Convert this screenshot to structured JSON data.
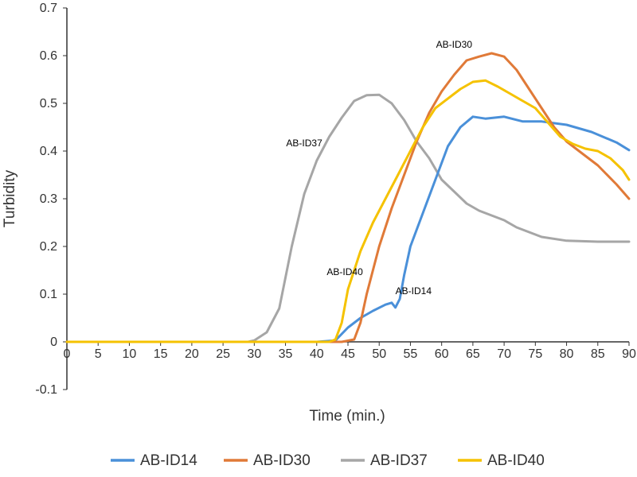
{
  "chart_data": {
    "type": "line",
    "title": "",
    "xlabel": "Time (min.)",
    "ylabel": "Turbidity",
    "xlim": [
      0,
      90
    ],
    "ylim": [
      -0.1,
      0.7
    ],
    "x_ticks": [
      "0",
      "5",
      "10",
      "15",
      "20",
      "25",
      "30",
      "35",
      "40",
      "45",
      "50",
      "55",
      "60",
      "65",
      "70",
      "75",
      "80",
      "85",
      "90"
    ],
    "y_ticks": [
      "0.7",
      "0.6",
      "0.5",
      "0.4",
      "0.3",
      "0.2",
      "0.1",
      "0",
      "-0.1"
    ],
    "grid": false,
    "legend_position": "bottom",
    "series": [
      {
        "name": "AB-ID14",
        "color": "#4A90D9",
        "points": [
          [
            0,
            0
          ],
          [
            40,
            0
          ],
          [
            43,
            0.003
          ],
          [
            45,
            0.03
          ],
          [
            47,
            0.05
          ],
          [
            49,
            0.065
          ],
          [
            51,
            0.078
          ],
          [
            52,
            0.082
          ],
          [
            52.6,
            0.072
          ],
          [
            53.3,
            0.09
          ],
          [
            54,
            0.14
          ],
          [
            55,
            0.2
          ],
          [
            57,
            0.27
          ],
          [
            59,
            0.34
          ],
          [
            61,
            0.41
          ],
          [
            63,
            0.45
          ],
          [
            65,
            0.472
          ],
          [
            67,
            0.468
          ],
          [
            70,
            0.472
          ],
          [
            73,
            0.462
          ],
          [
            76,
            0.462
          ],
          [
            80,
            0.455
          ],
          [
            84,
            0.44
          ],
          [
            88,
            0.418
          ],
          [
            90,
            0.402
          ]
        ]
      },
      {
        "name": "AB-ID30",
        "color": "#E07A38",
        "points": [
          [
            0,
            0
          ],
          [
            44,
            0
          ],
          [
            46,
            0.005
          ],
          [
            47,
            0.04
          ],
          [
            48,
            0.1
          ],
          [
            50,
            0.2
          ],
          [
            52,
            0.28
          ],
          [
            54,
            0.35
          ],
          [
            56,
            0.42
          ],
          [
            58,
            0.48
          ],
          [
            60,
            0.525
          ],
          [
            62,
            0.56
          ],
          [
            64,
            0.59
          ],
          [
            66,
            0.598
          ],
          [
            68,
            0.605
          ],
          [
            70,
            0.598
          ],
          [
            72,
            0.57
          ],
          [
            74,
            0.53
          ],
          [
            76,
            0.49
          ],
          [
            78,
            0.45
          ],
          [
            80,
            0.42
          ],
          [
            82,
            0.4
          ],
          [
            85,
            0.37
          ],
          [
            88,
            0.33
          ],
          [
            90,
            0.3
          ]
        ]
      },
      {
        "name": "AB-ID37",
        "color": "#A6A6A6",
        "points": [
          [
            0,
            0
          ],
          [
            29,
            0
          ],
          [
            30,
            0.003
          ],
          [
            32,
            0.02
          ],
          [
            34,
            0.07
          ],
          [
            36,
            0.2
          ],
          [
            38,
            0.31
          ],
          [
            40,
            0.38
          ],
          [
            42,
            0.43
          ],
          [
            44,
            0.47
          ],
          [
            46,
            0.505
          ],
          [
            48,
            0.517
          ],
          [
            50,
            0.518
          ],
          [
            52,
            0.5
          ],
          [
            54,
            0.465
          ],
          [
            56,
            0.42
          ],
          [
            58,
            0.385
          ],
          [
            60,
            0.34
          ],
          [
            62,
            0.315
          ],
          [
            64,
            0.29
          ],
          [
            66,
            0.275
          ],
          [
            68,
            0.265
          ],
          [
            70,
            0.255
          ],
          [
            72,
            0.24
          ],
          [
            74,
            0.23
          ],
          [
            76,
            0.22
          ],
          [
            80,
            0.212
          ],
          [
            85,
            0.21
          ],
          [
            90,
            0.21
          ]
        ]
      },
      {
        "name": "AB-ID40",
        "color": "#F5C200",
        "points": [
          [
            0,
            0
          ],
          [
            42,
            0
          ],
          [
            43,
            0.005
          ],
          [
            44,
            0.04
          ],
          [
            45,
            0.11
          ],
          [
            47,
            0.19
          ],
          [
            49,
            0.25
          ],
          [
            51,
            0.3
          ],
          [
            53,
            0.35
          ],
          [
            55,
            0.4
          ],
          [
            57,
            0.45
          ],
          [
            59,
            0.49
          ],
          [
            61,
            0.51
          ],
          [
            63,
            0.53
          ],
          [
            65,
            0.545
          ],
          [
            67,
            0.548
          ],
          [
            69,
            0.535
          ],
          [
            71,
            0.52
          ],
          [
            73,
            0.505
          ],
          [
            75,
            0.49
          ],
          [
            77,
            0.46
          ],
          [
            79,
            0.43
          ],
          [
            81,
            0.415
          ],
          [
            83,
            0.405
          ],
          [
            85,
            0.4
          ],
          [
            87,
            0.385
          ],
          [
            89,
            0.36
          ],
          [
            90,
            0.34
          ]
        ]
      }
    ],
    "annotations": [
      {
        "text": "AB-ID37",
        "x": 38,
        "y": 0.41
      },
      {
        "text": "AB-ID30",
        "x": 62,
        "y": 0.617
      },
      {
        "text": "AB-ID40",
        "x": 44.5,
        "y": 0.14
      },
      {
        "text": "AB-ID14",
        "x": 55.5,
        "y": 0.1
      }
    ]
  }
}
